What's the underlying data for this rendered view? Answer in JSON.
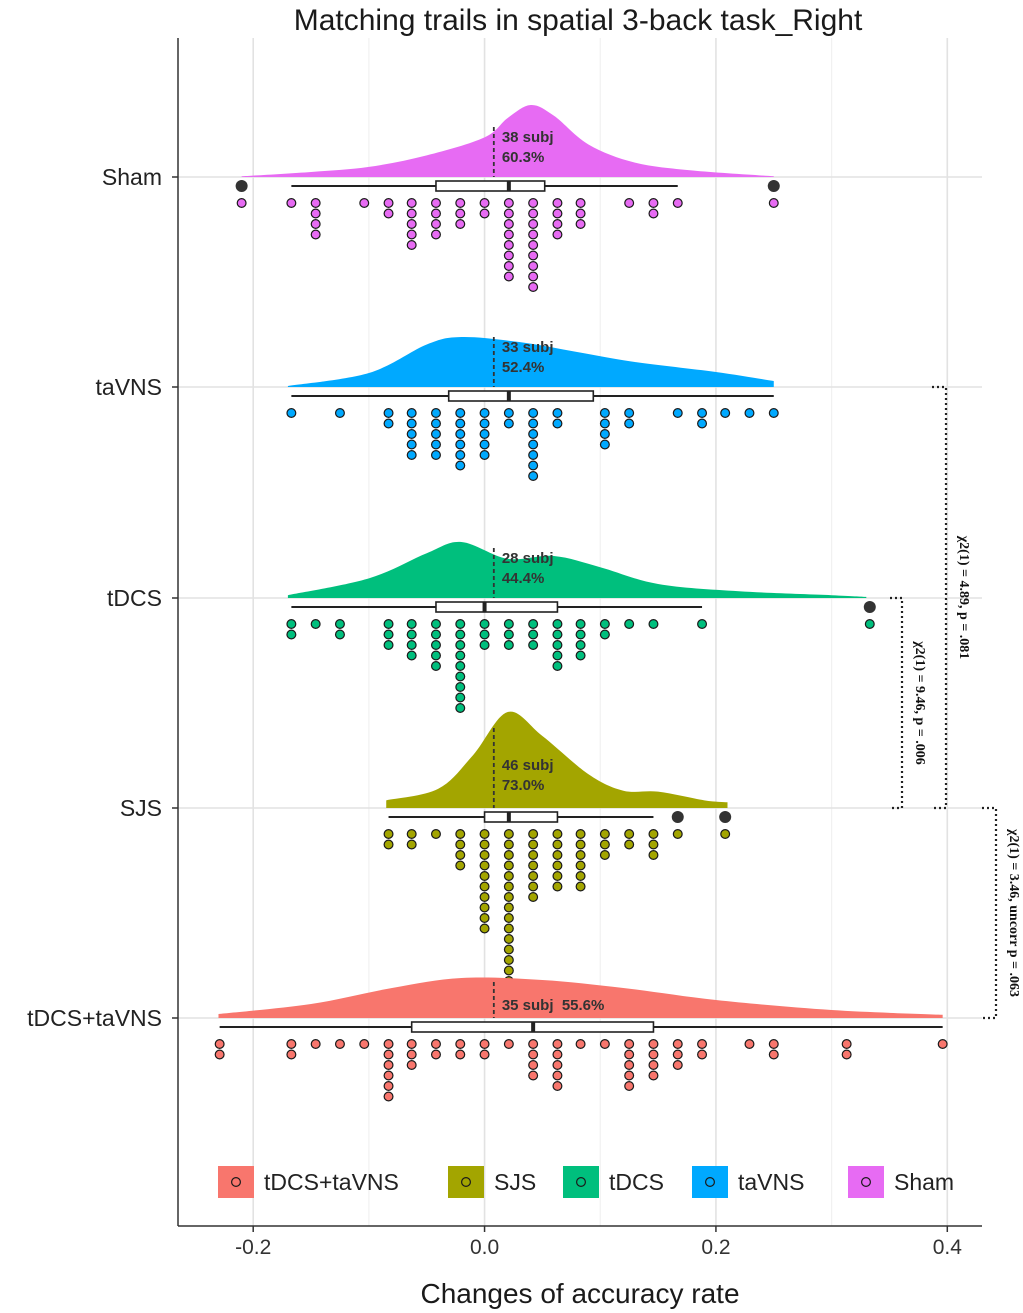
{
  "chart_data": {
    "type": "raincloud",
    "title": "Matching trails in spatial 3-back task_Right",
    "xlabel": "Changes of accuracy rate",
    "ylabel": "",
    "xlim": [
      -0.265,
      0.43
    ],
    "xticks": [
      -0.2,
      0.0,
      0.2,
      0.4
    ],
    "xtick_labels": [
      "-0.2",
      "0.0",
      "0.2",
      "0.4"
    ],
    "grid": true,
    "legend_position": "bottom",
    "groups": [
      {
        "name": "Sham",
        "color": "#E76BF3",
        "n_label": "38 subj",
        "pct_label": "60.3%",
        "box": {
          "whisker_low": -0.167,
          "q1": -0.042,
          "median": 0.021,
          "q3": 0.052,
          "whisker_high": 0.167
        },
        "outliers": [
          -0.21,
          0.25
        ],
        "points": [
          -0.21,
          -0.167,
          -0.146,
          -0.146,
          -0.146,
          -0.146,
          -0.104,
          -0.083,
          -0.083,
          -0.063,
          -0.063,
          -0.063,
          -0.063,
          -0.063,
          -0.042,
          -0.042,
          -0.042,
          -0.042,
          -0.021,
          -0.021,
          -0.021,
          0.0,
          0.0,
          0.021,
          0.021,
          0.021,
          0.021,
          0.021,
          0.021,
          0.021,
          0.021,
          0.042,
          0.042,
          0.042,
          0.042,
          0.042,
          0.042,
          0.042,
          0.042,
          0.042,
          0.063,
          0.063,
          0.063,
          0.063,
          0.083,
          0.083,
          0.083,
          0.125,
          0.146,
          0.146,
          0.167,
          0.25
        ],
        "density": [
          [
            -0.21,
            0.01
          ],
          [
            -0.15,
            0.07
          ],
          [
            -0.1,
            0.14
          ],
          [
            -0.05,
            0.3
          ],
          [
            0.0,
            0.55
          ],
          [
            0.02,
            0.82
          ],
          [
            0.04,
            1.0
          ],
          [
            0.06,
            0.85
          ],
          [
            0.09,
            0.45
          ],
          [
            0.13,
            0.2
          ],
          [
            0.18,
            0.09
          ],
          [
            0.25,
            0.01
          ]
        ]
      },
      {
        "name": "taVNS",
        "color": "#00A9FF",
        "n_label": "33 subj",
        "pct_label": "52.4%",
        "box": {
          "whisker_low": -0.167,
          "q1": -0.031,
          "median": 0.021,
          "q3": 0.094,
          "whisker_high": 0.25
        },
        "outliers": [],
        "points": [
          -0.167,
          -0.125,
          -0.083,
          -0.083,
          -0.063,
          -0.063,
          -0.063,
          -0.063,
          -0.063,
          -0.042,
          -0.042,
          -0.042,
          -0.042,
          -0.042,
          -0.021,
          -0.021,
          -0.021,
          -0.021,
          -0.021,
          -0.021,
          0.0,
          0.0,
          0.0,
          0.0,
          0.0,
          0.021,
          0.021,
          0.042,
          0.042,
          0.042,
          0.042,
          0.042,
          0.042,
          0.042,
          0.063,
          0.063,
          0.104,
          0.104,
          0.104,
          0.104,
          0.125,
          0.125,
          0.167,
          0.188,
          0.188,
          0.208,
          0.229,
          0.25
        ],
        "density": [
          [
            -0.17,
            0.02
          ],
          [
            -0.1,
            0.28
          ],
          [
            -0.05,
            0.85
          ],
          [
            -0.02,
            1.0
          ],
          [
            0.03,
            0.9
          ],
          [
            0.08,
            0.7
          ],
          [
            0.13,
            0.5
          ],
          [
            0.2,
            0.3
          ],
          [
            0.25,
            0.12
          ]
        ]
      },
      {
        "name": "tDCS",
        "color": "#00BF7D",
        "n_label": "28 subj",
        "pct_label": "44.4%",
        "box": {
          "whisker_low": -0.167,
          "q1": -0.042,
          "median": 0.0,
          "q3": 0.063,
          "whisker_high": 0.188
        },
        "outliers": [
          0.333
        ],
        "points": [
          -0.167,
          -0.167,
          -0.146,
          -0.125,
          -0.125,
          -0.083,
          -0.083,
          -0.083,
          -0.063,
          -0.063,
          -0.063,
          -0.063,
          -0.042,
          -0.042,
          -0.042,
          -0.042,
          -0.042,
          -0.021,
          -0.021,
          -0.021,
          -0.021,
          -0.021,
          -0.021,
          -0.021,
          -0.021,
          -0.021,
          0.0,
          0.0,
          0.0,
          0.021,
          0.021,
          0.021,
          0.042,
          0.042,
          0.042,
          0.063,
          0.063,
          0.063,
          0.063,
          0.063,
          0.083,
          0.083,
          0.083,
          0.083,
          0.104,
          0.104,
          0.125,
          0.146,
          0.188,
          0.333
        ],
        "density": [
          [
            -0.17,
            0.05
          ],
          [
            -0.1,
            0.35
          ],
          [
            -0.05,
            0.8
          ],
          [
            -0.02,
            1.0
          ],
          [
            0.02,
            0.7
          ],
          [
            0.06,
            0.75
          ],
          [
            0.1,
            0.55
          ],
          [
            0.15,
            0.25
          ],
          [
            0.22,
            0.12
          ],
          [
            0.3,
            0.05
          ],
          [
            0.33,
            0.02
          ]
        ]
      },
      {
        "name": "SJS",
        "color": "#A3A500",
        "n_label": "46 subj",
        "pct_label": "73.0%",
        "box": {
          "whisker_low": -0.083,
          "q1": 0.0,
          "median": 0.021,
          "q3": 0.063,
          "whisker_high": 0.146
        },
        "outliers": [
          0.167,
          0.208
        ],
        "points": [
          -0.083,
          -0.083,
          -0.063,
          -0.063,
          -0.042,
          -0.021,
          -0.021,
          -0.021,
          -0.021,
          0.0,
          0.0,
          0.0,
          0.0,
          0.0,
          0.0,
          0.0,
          0.0,
          0.0,
          0.0,
          0.021,
          0.021,
          0.021,
          0.021,
          0.021,
          0.021,
          0.021,
          0.021,
          0.021,
          0.021,
          0.021,
          0.021,
          0.021,
          0.021,
          0.021,
          0.042,
          0.042,
          0.042,
          0.042,
          0.042,
          0.042,
          0.042,
          0.063,
          0.063,
          0.063,
          0.063,
          0.063,
          0.063,
          0.083,
          0.083,
          0.083,
          0.083,
          0.083,
          0.083,
          0.104,
          0.104,
          0.104,
          0.125,
          0.125,
          0.146,
          0.146,
          0.146,
          0.167,
          0.208
        ],
        "density": [
          [
            -0.085,
            0.08
          ],
          [
            -0.04,
            0.2
          ],
          [
            -0.01,
            0.55
          ],
          [
            0.02,
            1.0
          ],
          [
            0.05,
            0.75
          ],
          [
            0.09,
            0.35
          ],
          [
            0.12,
            0.18
          ],
          [
            0.15,
            0.17
          ],
          [
            0.19,
            0.08
          ],
          [
            0.21,
            0.06
          ]
        ]
      },
      {
        "name": "tDCS+taVNS",
        "color": "#F8766D",
        "n_label": "35 subj",
        "pct_label": "55.6%",
        "box": {
          "whisker_low": -0.229,
          "q1": -0.063,
          "median": 0.042,
          "q3": 0.146,
          "whisker_high": 0.396
        },
        "outliers": [],
        "points": [
          -0.229,
          -0.229,
          -0.167,
          -0.167,
          -0.146,
          -0.125,
          -0.104,
          -0.083,
          -0.083,
          -0.083,
          -0.083,
          -0.083,
          -0.083,
          -0.063,
          -0.063,
          -0.063,
          -0.042,
          -0.042,
          -0.021,
          -0.021,
          0.0,
          0.0,
          0.021,
          0.042,
          0.042,
          0.042,
          0.042,
          0.063,
          0.063,
          0.063,
          0.063,
          0.063,
          0.083,
          0.104,
          0.125,
          0.125,
          0.125,
          0.125,
          0.125,
          0.146,
          0.146,
          0.146,
          0.146,
          0.167,
          0.167,
          0.167,
          0.188,
          0.188,
          0.229,
          0.25,
          0.25,
          0.313,
          0.313,
          0.396
        ],
        "density": [
          [
            -0.23,
            0.1
          ],
          [
            -0.15,
            0.35
          ],
          [
            -0.08,
            0.75
          ],
          [
            -0.02,
            1.0
          ],
          [
            0.05,
            0.95
          ],
          [
            0.12,
            0.75
          ],
          [
            0.2,
            0.45
          ],
          [
            0.3,
            0.2
          ],
          [
            0.396,
            0.08
          ]
        ]
      }
    ],
    "comparisons": [
      {
        "label": "χ2(1) = 4.89, p = .081",
        "between": [
          "taVNS",
          "SJS"
        ]
      },
      {
        "label": "χ2(1) = 9.46, p = .006",
        "between": [
          "tDCS",
          "SJS"
        ]
      },
      {
        "label": "χ2(1) = 3.46, uncorr p = .063",
        "between": [
          "SJS",
          "tDCS+taVNS"
        ]
      }
    ],
    "legend": [
      "tDCS+taVNS",
      "SJS",
      "tDCS",
      "taVNS",
      "Sham"
    ]
  }
}
